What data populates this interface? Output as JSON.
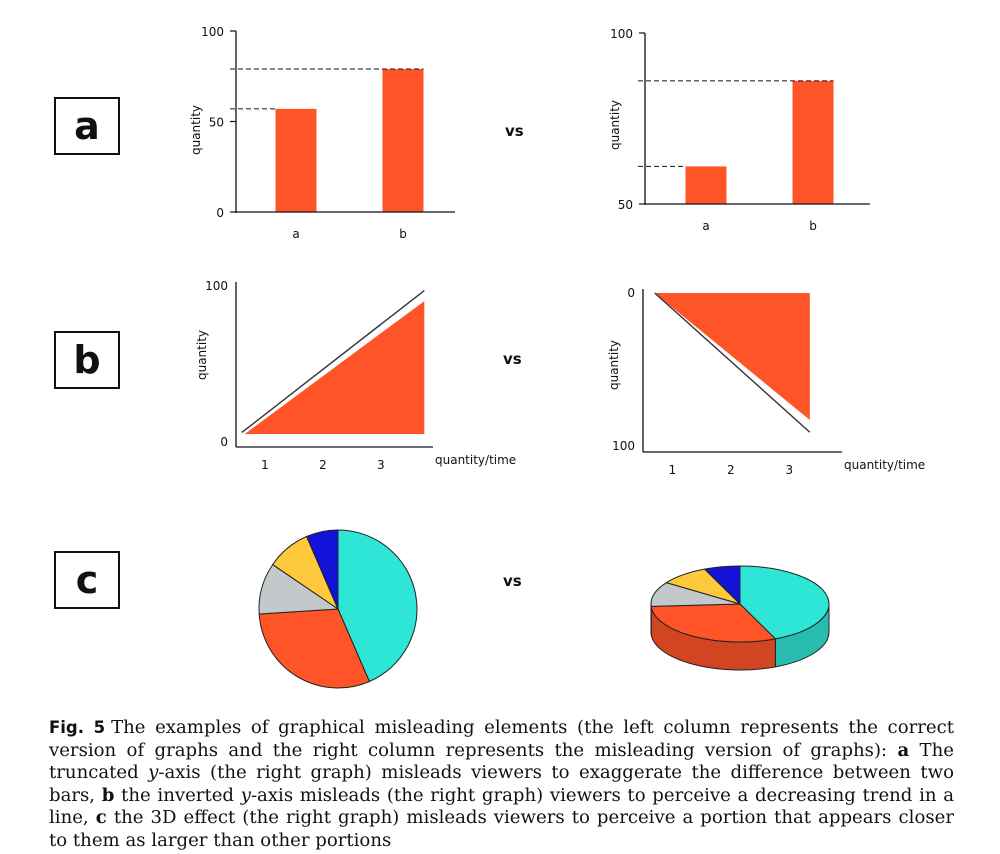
{
  "rows": {
    "a_label": "a",
    "b_label": "b",
    "c_label": "c",
    "vs": "vs"
  },
  "colors": {
    "bar": "#FF5427",
    "axis": "#111111",
    "pie_cyan": "#2EE6D6",
    "pie_orange": "#FF5427",
    "pie_gray": "#C3C8CA",
    "pie_yellow": "#FFC93C",
    "pie_blue": "#1212D9"
  },
  "chart_data": [
    {
      "id": "a-left",
      "type": "bar",
      "categories": [
        "a",
        "b"
      ],
      "values": [
        57,
        79
      ],
      "ylabel": "quantity",
      "ylim": [
        0,
        100
      ],
      "yticks": [
        0,
        50,
        100
      ],
      "reference_lines": "dashed"
    },
    {
      "id": "a-right",
      "type": "bar",
      "categories": [
        "a",
        "b"
      ],
      "values": [
        61,
        86
      ],
      "ylabel": "quantity",
      "ylim": [
        50,
        100
      ],
      "yticks": [
        50,
        100
      ],
      "reference_lines": "dashed"
    },
    {
      "id": "b-left",
      "type": "area",
      "x": [
        1,
        2,
        3
      ],
      "xlabel": "quantity/time",
      "xlim": [
        0.5,
        3.9
      ],
      "ylabel": "quantity",
      "ylim": [
        0,
        100
      ],
      "yticks": [
        0,
        100
      ],
      "area": [
        [
          0.65,
          2
        ],
        [
          3.75,
          2
        ],
        [
          3.75,
          90
        ]
      ],
      "line": [
        [
          0.6,
          3
        ],
        [
          3.75,
          97
        ]
      ]
    },
    {
      "id": "b-right",
      "type": "area",
      "x": [
        1,
        2,
        3
      ],
      "xlabel": "quantity/time",
      "xlim": [
        0.5,
        3.9
      ],
      "ylabel": "quantity",
      "ylim": [
        0,
        100
      ],
      "yticks": [
        0,
        100
      ],
      "y_inverted": true,
      "area": [
        [
          0.7,
          0
        ],
        [
          3.35,
          0
        ],
        [
          3.35,
          83
        ]
      ],
      "line": [
        [
          0.7,
          0
        ],
        [
          3.35,
          91
        ]
      ]
    },
    {
      "id": "c-left",
      "type": "pie",
      "slices": [
        {
          "color": "cyan",
          "value": 43.5
        },
        {
          "color": "orange",
          "value": 30.5
        },
        {
          "color": "gray",
          "value": 10.5
        },
        {
          "color": "yellow",
          "value": 9
        },
        {
          "color": "blue",
          "value": 6.5
        }
      ]
    },
    {
      "id": "c-right",
      "type": "pie",
      "style": "3d",
      "slices": [
        {
          "color": "cyan",
          "value": 43.5
        },
        {
          "color": "orange",
          "value": 30.5
        },
        {
          "color": "gray",
          "value": 10.5
        },
        {
          "color": "yellow",
          "value": 9
        },
        {
          "color": "blue",
          "value": 6.5
        }
      ]
    }
  ],
  "caption": {
    "fig": "Fig. 5",
    "p1": "The examples of graphical misleading elements (the left column represents the correct version of graphs and the right column represents the misleading version of graphs): ",
    "a": "a",
    "p2": " The truncated ",
    "y1": "y",
    "p3": "-axis (the right graph) misleads viewers to exaggerate the difference between two bars, ",
    "b": "b",
    "p4": " the inverted ",
    "y2": "y",
    "p5": "-axis misleads (the right graph) viewers to perceive a decreasing trend in a line, ",
    "c": "c",
    "p6": " the 3D effect (the right graph) misleads viewers to perceive a portion that appears closer to them as larger than other portions"
  }
}
